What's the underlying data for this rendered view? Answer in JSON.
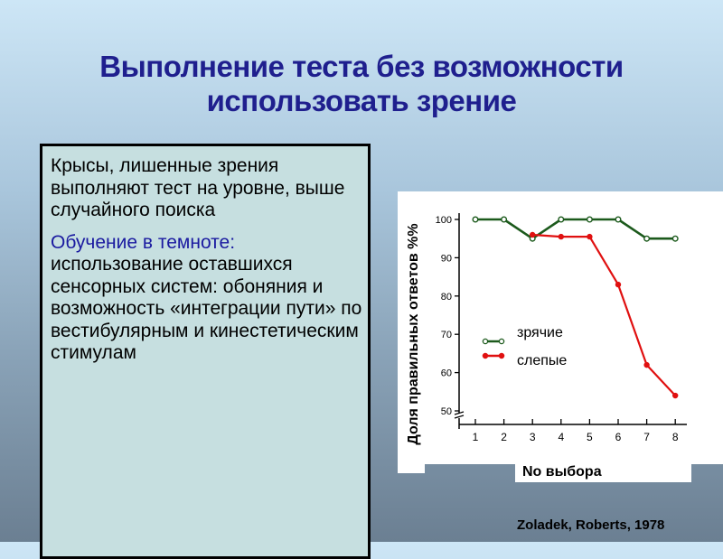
{
  "slide": {
    "title_line1": "Выполнение теста без возможности",
    "title_line2": "использовать зрение",
    "intro": "Крысы, лишенные зрения выполняют тест на уровне, выше случайного поиска",
    "learning_heading": "Обучение в темноте:",
    "learning_body": " использование оставшихся сенсорных систем:  обоняния и возможность «интеграции пути» по вестибулярным и кинестетическим стимулам",
    "citation": "Zoladek, Roberts, 1978"
  },
  "colors": {
    "sighted": "#1c5a1c",
    "blind": "#e01010",
    "title": "#1f1f8e",
    "text_box": "#c6dfe0"
  },
  "chart_data": {
    "type": "line",
    "xlabel": "No  выбора",
    "ylabel": "Доля правильных ответов %%",
    "x": [
      1,
      2,
      3,
      4,
      5,
      6,
      7,
      8
    ],
    "xticks": [
      "1",
      "2",
      "3",
      "4",
      "5",
      "6",
      "7",
      "8"
    ],
    "yticks": [
      "50",
      "60",
      "70",
      "80",
      "90",
      "100"
    ],
    "ylim": [
      50,
      100
    ],
    "axis_break": true,
    "grid": false,
    "legend_placement": "center",
    "series": [
      {
        "name": "зрячие",
        "marker": "open-circle",
        "x": [
          1,
          2,
          3,
          4,
          5,
          6,
          7,
          8
        ],
        "values": [
          100,
          100,
          95,
          100,
          100,
          100,
          95,
          95
        ]
      },
      {
        "name": "слепые",
        "marker": "filled-circle",
        "x": [
          3,
          4,
          5,
          6,
          7,
          8
        ],
        "values": [
          96,
          95.5,
          95.5,
          83,
          62,
          54
        ]
      }
    ]
  }
}
